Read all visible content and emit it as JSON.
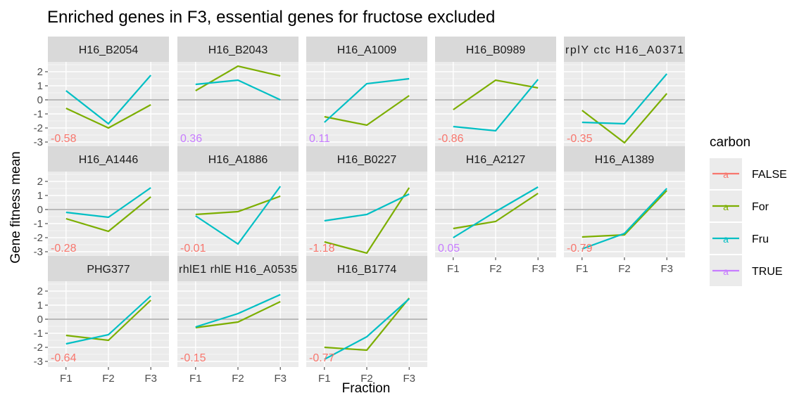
{
  "chart_data": {
    "type": "line",
    "title": "Enriched genes in F3, essential genes for fructose excluded",
    "xlabel": "Fraction",
    "ylabel": "Gene fitness mean",
    "x_categories": [
      "F1",
      "F2",
      "F3"
    ],
    "y_ticks": [
      2,
      1,
      0,
      -1,
      -2,
      -3
    ],
    "ylim": [
      -3.4,
      2.7
    ],
    "grid": true,
    "legend": {
      "title": "carbon",
      "position": "right",
      "key_glyph_text": "a",
      "entries": [
        {
          "label": "FALSE",
          "color": "#F8766D"
        },
        {
          "label": "For",
          "color": "#7CAE00"
        },
        {
          "label": "Fru",
          "color": "#00BFC4"
        },
        {
          "label": "TRUE",
          "color": "#C77CFF"
        }
      ]
    },
    "panels": [
      {
        "label": "H16_B2054",
        "corr": "-0.58",
        "corr_sig": "FALSE",
        "For": [
          -0.6,
          -2.0,
          -0.35
        ],
        "Fru": [
          0.65,
          -1.7,
          1.75
        ]
      },
      {
        "label": "H16_B2043",
        "corr": "0.36",
        "corr_sig": "TRUE",
        "For": [
          0.65,
          2.4,
          1.7
        ],
        "Fru": [
          1.1,
          1.4,
          0.0
        ]
      },
      {
        "label": "H16_A1009",
        "corr": "0.11",
        "corr_sig": "TRUE",
        "For": [
          -1.2,
          -1.8,
          0.3
        ],
        "Fru": [
          -1.6,
          1.15,
          1.5
        ]
      },
      {
        "label": "H16_B0989",
        "corr": "-0.86",
        "corr_sig": "FALSE",
        "For": [
          -0.7,
          1.4,
          0.85
        ],
        "Fru": [
          -1.9,
          -2.2,
          1.45
        ]
      },
      {
        "label": "rplY ctc H16_A0371",
        "corr": "-0.35",
        "corr_sig": "FALSE",
        "For": [
          -0.75,
          -3.05,
          0.45
        ],
        "Fru": [
          -1.6,
          -1.7,
          1.85
        ]
      },
      {
        "label": "H16_A1446",
        "corr": "-0.28",
        "corr_sig": "FALSE",
        "For": [
          -0.65,
          -1.55,
          0.9
        ],
        "Fru": [
          -0.2,
          -0.55,
          1.55
        ]
      },
      {
        "label": "H16_A1886",
        "corr": "-0.01",
        "corr_sig": "FALSE",
        "For": [
          -0.35,
          -0.15,
          0.95
        ],
        "Fru": [
          -0.45,
          -2.45,
          1.65
        ]
      },
      {
        "label": "H16_B0227",
        "corr": "-1.18",
        "corr_sig": "FALSE",
        "For": [
          -2.3,
          -3.1,
          1.55
        ],
        "Fru": [
          -0.8,
          -0.35,
          1.1
        ]
      },
      {
        "label": "H16_A2127",
        "corr": "0.05",
        "corr_sig": "TRUE",
        "For": [
          -1.35,
          -0.85,
          1.15
        ],
        "Fru": [
          -2.0,
          -0.15,
          1.6
        ]
      },
      {
        "label": "H16_A1389",
        "corr": "-0.79",
        "corr_sig": "FALSE",
        "For": [
          -1.95,
          -1.8,
          1.35
        ],
        "Fru": [
          -2.8,
          -1.7,
          1.5
        ]
      },
      {
        "label": "PHG377",
        "corr": "-0.64",
        "corr_sig": "FALSE",
        "For": [
          -1.15,
          -1.5,
          1.35
        ],
        "Fru": [
          -1.75,
          -1.1,
          1.65
        ]
      },
      {
        "label": "rhlE1 rhlE H16_A0535",
        "corr": "-0.15",
        "corr_sig": "FALSE",
        "For": [
          -0.6,
          -0.2,
          1.25
        ],
        "Fru": [
          -0.55,
          0.4,
          1.75
        ]
      },
      {
        "label": "H16_B1774",
        "corr": "-0.77",
        "corr_sig": "FALSE",
        "For": [
          -2.0,
          -2.2,
          1.5
        ],
        "Fru": [
          -2.85,
          -1.25,
          1.45
        ]
      }
    ]
  }
}
